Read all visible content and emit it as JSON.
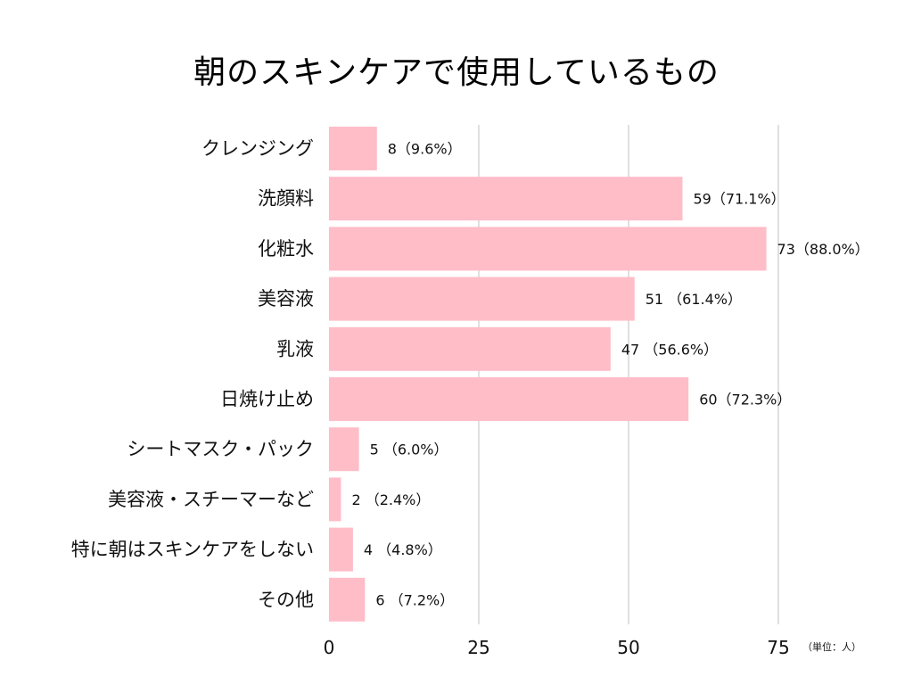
{
  "title": "朝のスキンケアで使用しているもの",
  "unit_label": "（単位：人）",
  "colors": {
    "bar": "#ffbdc8",
    "grid": "#d6d6d6"
  },
  "chart_data": {
    "type": "bar",
    "orientation": "horizontal",
    "title": "朝のスキンケアで使用しているもの",
    "categories": [
      "クレンジング",
      "洗顔料",
      "化粧水",
      "美容液",
      "乳液",
      "日焼け止め",
      "シートマスク・パック",
      "美容液・スチーマーなど",
      "特に朝はスキンケアをしない",
      "その他"
    ],
    "values": [
      8,
      59,
      73,
      51,
      47,
      60,
      5,
      2,
      4,
      6
    ],
    "data_labels": [
      "8（9.6%）",
      "59（71.1%）",
      "73（88.0%）",
      "51 （61.4%）",
      "47 （56.6%）",
      "60（72.3%）",
      "5 （6.0%）",
      "2 （2.4%）",
      "4 （4.8%）",
      "6 （7.2%）"
    ],
    "xlim": [
      0,
      75
    ],
    "xticks": [
      "0",
      "25",
      "50",
      "75"
    ],
    "xtick_values": [
      0,
      25,
      50,
      75
    ],
    "grid": true,
    "legend": "none"
  }
}
